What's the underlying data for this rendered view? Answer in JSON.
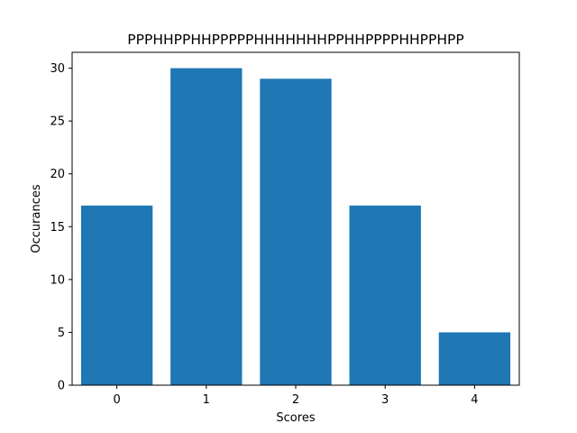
{
  "chart_data": {
    "type": "bar",
    "title": "PPPHHPPHHPPPPPHHHHHHHPPHHPPPPHHPPHPP",
    "xlabel": "Scores",
    "ylabel": "Occurances",
    "categories": [
      "0",
      "1",
      "2",
      "3",
      "4"
    ],
    "values": [
      17,
      30,
      29,
      17,
      5
    ],
    "ylim": [
      0,
      31.5
    ],
    "xlim": [
      -0.5,
      4.5
    ],
    "yticks": [
      0,
      5,
      10,
      15,
      20,
      25,
      30
    ],
    "grid": false,
    "bar_color": "#1f77b4"
  }
}
